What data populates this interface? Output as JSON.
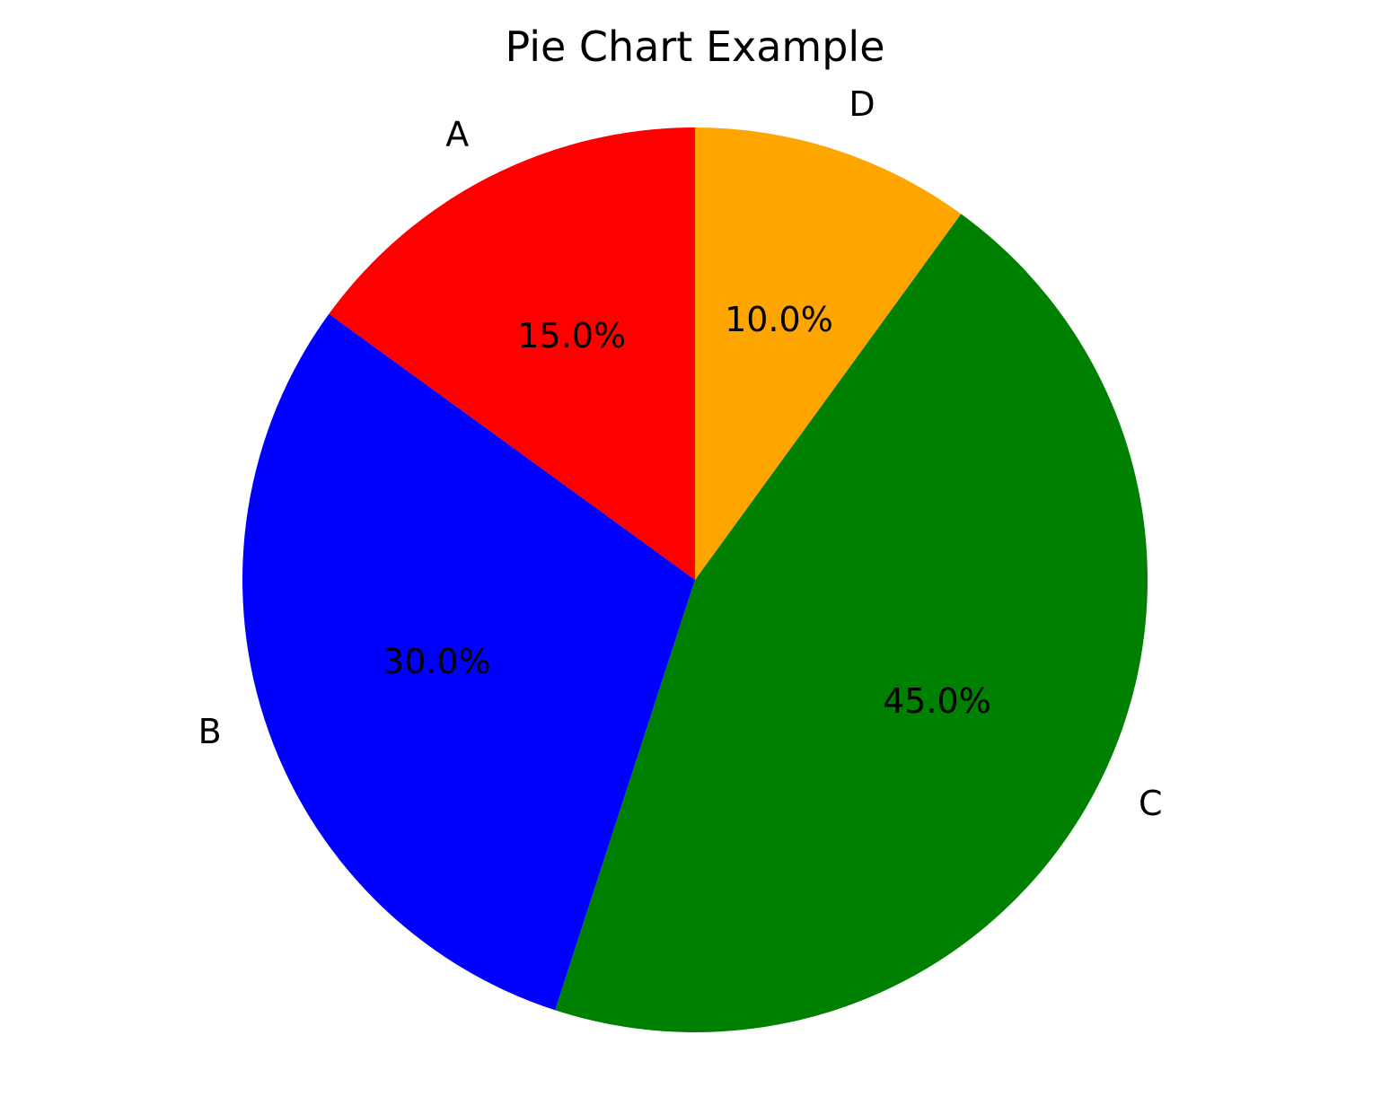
{
  "chart_data": {
    "type": "pie",
    "title": "Pie Chart Example",
    "start_angle_deg": 90,
    "direction": "counterclockwise",
    "slices": [
      {
        "label": "A",
        "value": 15.0,
        "pct_label": "15.0%",
        "color": "#ff0000"
      },
      {
        "label": "B",
        "value": 30.0,
        "pct_label": "30.0%",
        "color": "#0000ff"
      },
      {
        "label": "C",
        "value": 45.0,
        "pct_label": "45.0%",
        "color": "#008000"
      },
      {
        "label": "D",
        "value": 10.0,
        "pct_label": "10.0%",
        "color": "#ffa500"
      }
    ]
  }
}
